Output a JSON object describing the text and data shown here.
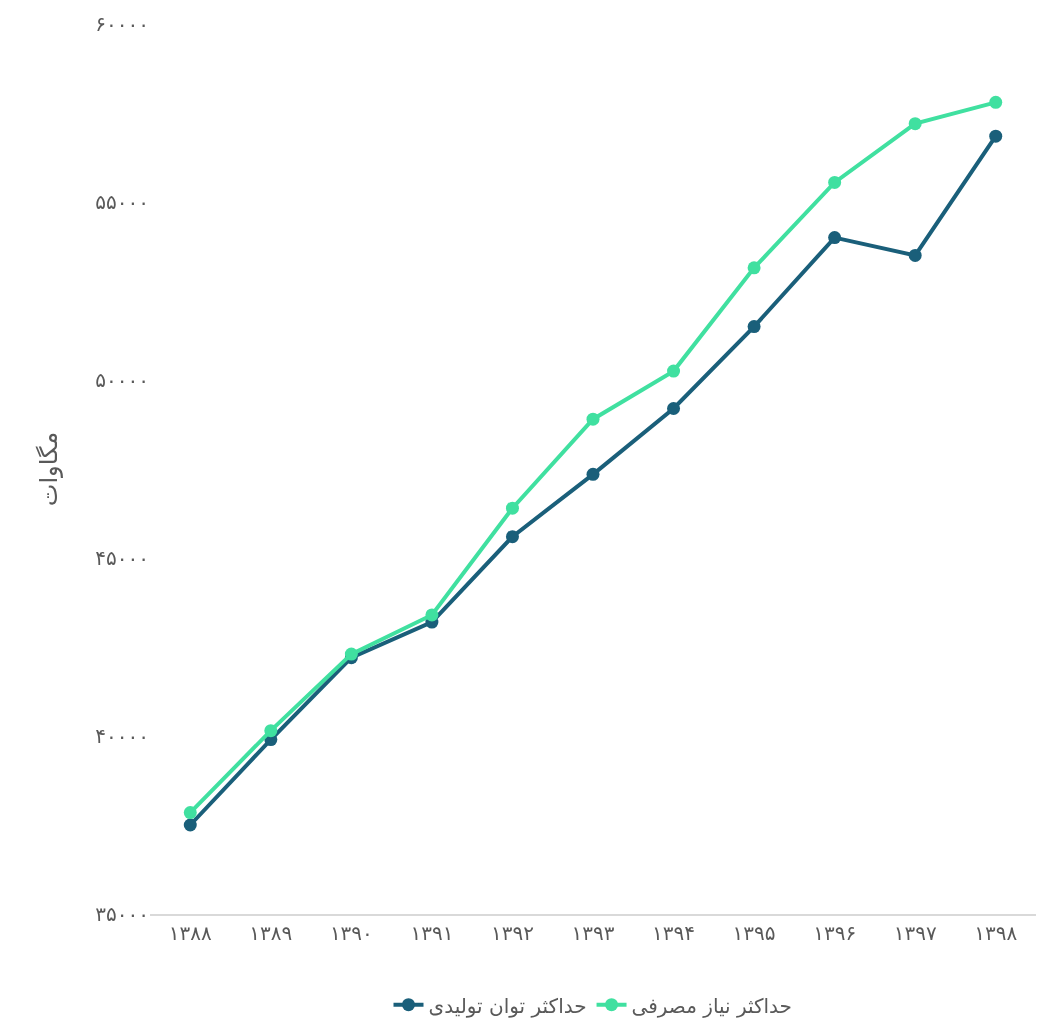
{
  "chart_data": {
    "type": "line",
    "ylabel": "مگاوات",
    "categories": [
      "۱۳۸۸",
      "۱۳۸۹",
      "۱۳۹۰",
      "۱۳۹۱",
      "۱۳۹۲",
      "۱۳۹۳",
      "۱۳۹۴",
      "۱۳۹۵",
      "۱۳۹۶",
      "۱۳۹۷",
      "۱۳۹۸"
    ],
    "series": [
      {
        "name": "حداکثر توان تولیدی",
        "color": "#1a5f7a",
        "values": [
          37500,
          39900,
          42200,
          43200,
          45600,
          47350,
          49200,
          51500,
          54000,
          53500,
          56850
        ]
      },
      {
        "name": "حداکثر نیاز مصرفی",
        "color": "#40e0a0",
        "values": [
          37850,
          40150,
          42300,
          43400,
          46400,
          48900,
          50250,
          53150,
          55550,
          57200,
          57800
        ]
      }
    ],
    "ylim": [
      35000,
      60000
    ],
    "yticks": [
      {
        "value": 35000,
        "label": "۳۵۰۰۰"
      },
      {
        "value": 40000,
        "label": "۴۰۰۰۰"
      },
      {
        "value": 45000,
        "label": "۴۵۰۰۰"
      },
      {
        "value": 50000,
        "label": "۵۰۰۰۰"
      },
      {
        "value": 55000,
        "label": "۵۵۰۰۰"
      },
      {
        "value": 60000,
        "label": "۶۰۰۰۰"
      }
    ],
    "legend": "bottom",
    "marker": "circle",
    "line_style": "solid"
  }
}
